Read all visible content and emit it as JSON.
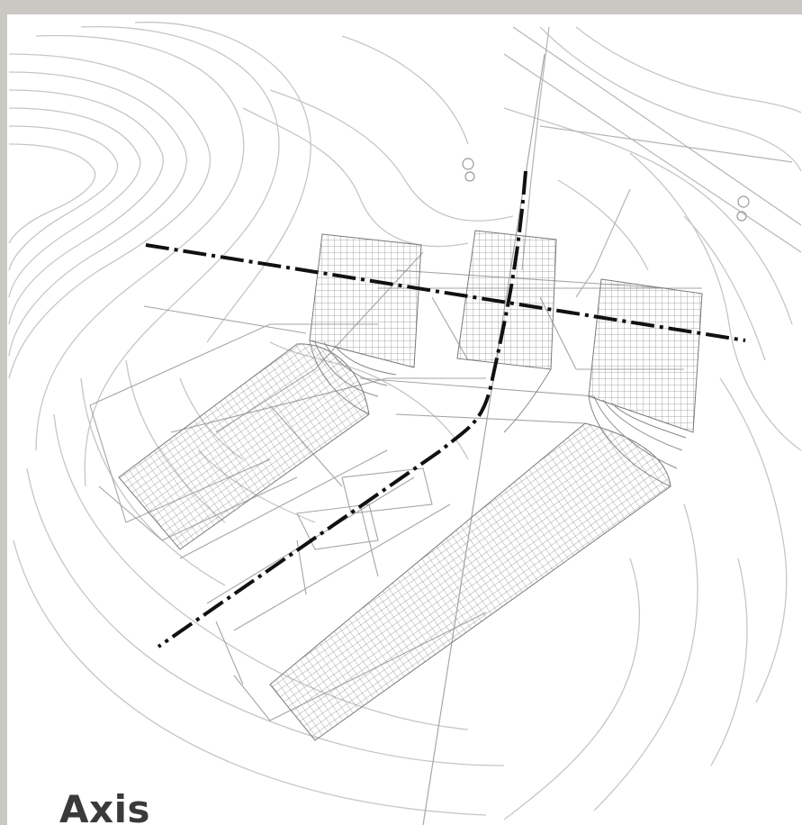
{
  "caption": "Axis",
  "colors": {
    "frame": "#c9c8c3",
    "contours": "#c4c4c4",
    "grid": "#8a8a8a",
    "structure": "#9a9a9a",
    "axis": "#111111",
    "caption": "#3a3a3a"
  },
  "icons": [
    "tree-symbol-icon"
  ]
}
